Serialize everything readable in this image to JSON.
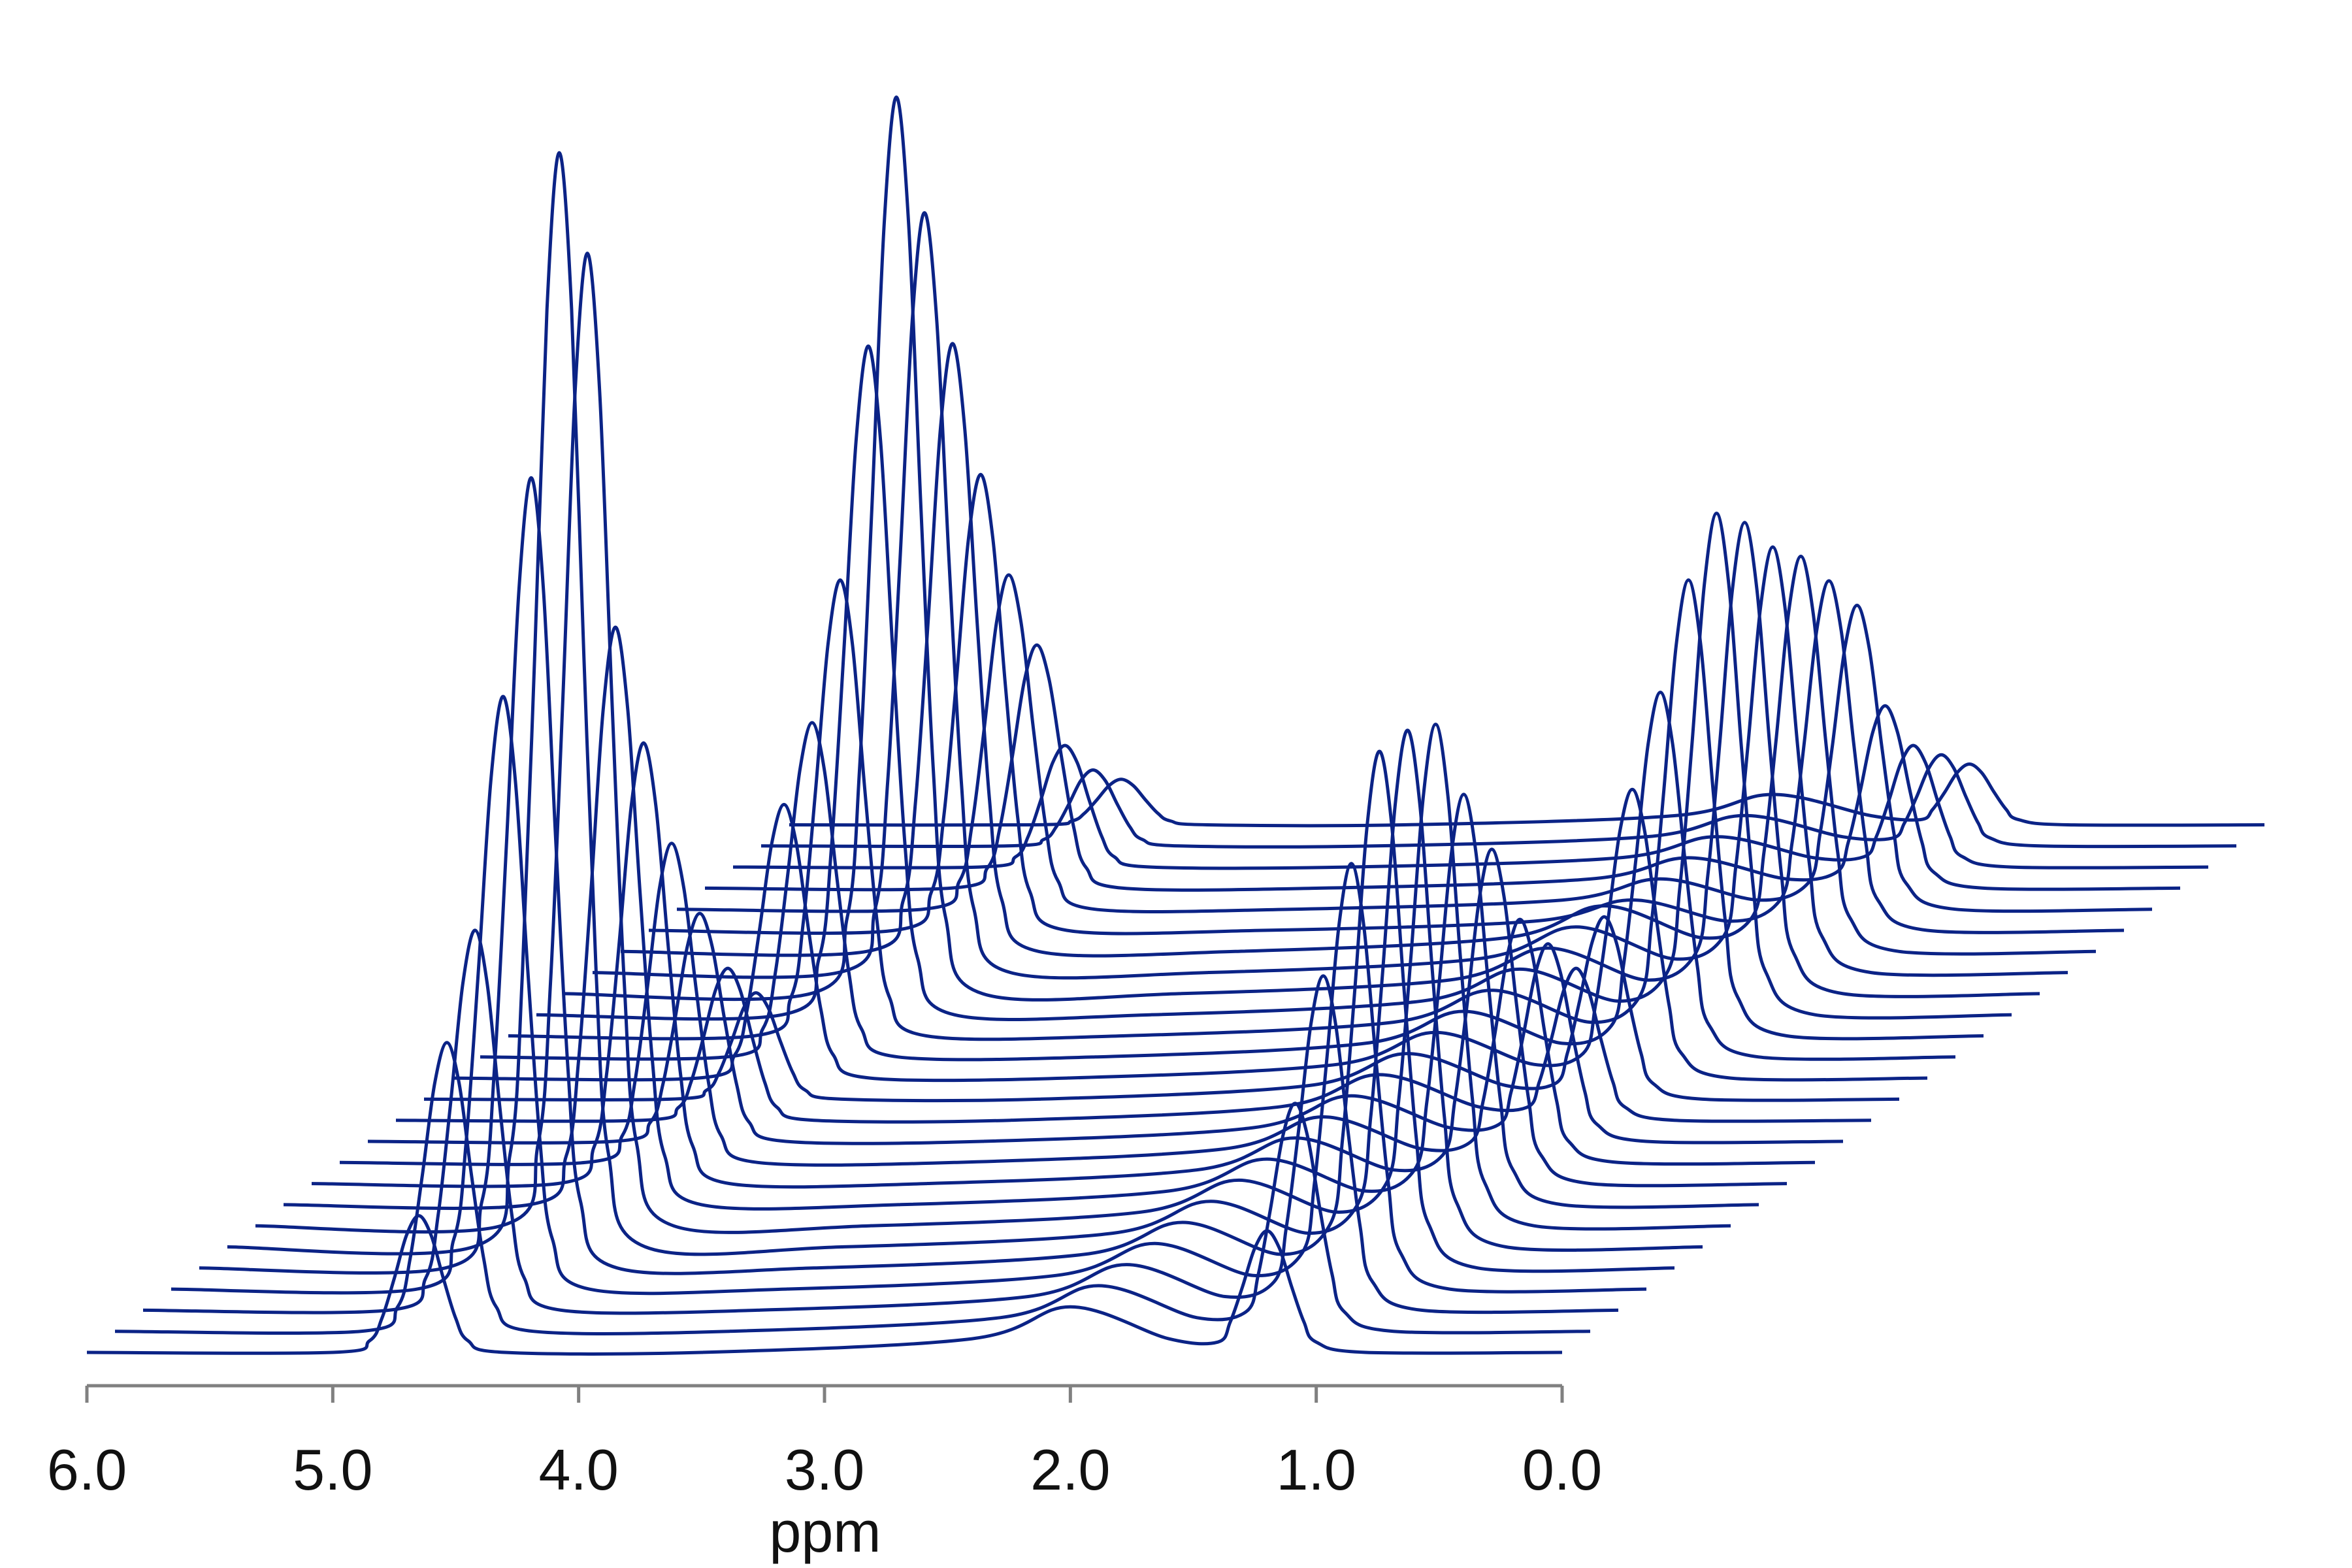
{
  "chart_data": {
    "type": "waterfall",
    "xlabel": "ppm",
    "color": "#0b2386",
    "xlim": [
      6,
      0
    ],
    "xticks": [
      {
        "value": 6,
        "label": "6.0"
      },
      {
        "value": 5,
        "label": "5.0"
      },
      {
        "value": 4,
        "label": "4.0"
      },
      {
        "value": 3,
        "label": "3.0"
      },
      {
        "value": 2,
        "label": "2.0"
      },
      {
        "value": 1,
        "label": "1.0"
      },
      {
        "value": 0,
        "label": "0.0"
      }
    ],
    "x": [
      6.0,
      5.0,
      4.85,
      4.8,
      4.75,
      4.7,
      4.65,
      4.6,
      4.55,
      4.5,
      4.45,
      4.3,
      3.5,
      2.4,
      2.0,
      1.6,
      1.4,
      1.35,
      1.3,
      1.25,
      1.2,
      1.15,
      1.1,
      1.05,
      1.0,
      0.8,
      0.0
    ],
    "series": [
      {
        "values": [
          0,
          0,
          0.77,
          2.25,
          4.86,
          7.71,
          9,
          7.71,
          4.86,
          2.25,
          0.77,
          0,
          0,
          0.9,
          3,
          0.9,
          0.68,
          2,
          4.32,
          6.86,
          8,
          6.86,
          4.32,
          2,
          0.68,
          0,
          0
        ]
      },
      {
        "values": [
          0,
          0,
          1.62,
          4.75,
          10.26,
          16.28,
          19,
          16.28,
          10.26,
          4.75,
          1.62,
          0,
          0,
          0.9,
          3,
          0.9,
          1.28,
          3.75,
          8.1,
          12.86,
          15,
          12.86,
          8.1,
          3.75,
          1.28,
          0,
          0
        ]
      },
      {
        "values": [
          0,
          0,
          2.13,
          6.25,
          13.5,
          21.43,
          25,
          21.43,
          13.5,
          6.25,
          2.13,
          0,
          0,
          0.9,
          3,
          0.9,
          1.87,
          5.5,
          11.88,
          18.85,
          22,
          18.85,
          11.88,
          5.5,
          1.87,
          0,
          0
        ]
      },
      {
        "values": [
          0,
          0,
          3.32,
          9.75,
          21.06,
          33.42,
          39,
          33.42,
          21.06,
          9.75,
          3.32,
          0,
          0,
          0.9,
          3,
          0.9,
          2.38,
          7,
          15.12,
          24,
          28,
          24,
          15.12,
          7,
          2.38,
          0,
          0
        ]
      },
      {
        "values": [
          0,
          0,
          4.42,
          13,
          28.08,
          44.56,
          52,
          44.56,
          28.08,
          13,
          4.42,
          0,
          0,
          0.9,
          3,
          0.9,
          2.89,
          8.5,
          18.36,
          29.14,
          34,
          29.14,
          18.36,
          8.5,
          2.89,
          0,
          0
        ]
      },
      {
        "values": [
          0,
          0,
          6.12,
          18,
          38.88,
          61.7,
          72,
          61.7,
          38.88,
          18,
          6.12,
          0,
          0,
          0.9,
          3,
          0.9,
          2.89,
          8.5,
          18.36,
          29.14,
          34,
          29.14,
          18.36,
          8.5,
          2.89,
          0,
          0
        ]
      },
      {
        "values": [
          0,
          0,
          5.44,
          16,
          34.56,
          54.85,
          64,
          54.85,
          34.56,
          16,
          5.44,
          0,
          0,
          0.9,
          3,
          0.9,
          2.81,
          8.25,
          17.82,
          28.28,
          33,
          28.28,
          17.82,
          8.25,
          2.81,
          0,
          0
        ]
      },
      {
        "values": [
          0,
          0,
          3.23,
          9.5,
          20.52,
          32.57,
          38,
          32.57,
          20.52,
          9.5,
          3.23,
          0,
          0,
          0.9,
          3,
          0.9,
          2.3,
          6.75,
          14.58,
          23.14,
          27,
          23.14,
          14.58,
          6.75,
          2.3,
          0,
          0
        ]
      },
      {
        "values": [
          0,
          0,
          2.47,
          7.25,
          15.66,
          24.85,
          29,
          24.85,
          15.66,
          7.25,
          2.47,
          0,
          0,
          0.9,
          3,
          0.9,
          1.87,
          5.5,
          11.88,
          18.85,
          22,
          18.85,
          11.88,
          5.5,
          1.87,
          0,
          0
        ]
      },
      {
        "values": [
          0,
          0,
          1.79,
          5.25,
          11.34,
          18,
          21,
          18,
          11.34,
          5.25,
          1.79,
          0,
          0,
          0.9,
          3,
          0.9,
          1.36,
          4,
          8.64,
          13.71,
          16,
          13.71,
          8.64,
          4,
          1.36,
          0,
          0
        ]
      },
      {
        "values": [
          0,
          0,
          1.28,
          3.75,
          8.1,
          12.86,
          15,
          12.86,
          8.1,
          3.75,
          1.28,
          0,
          0,
          0.9,
          3,
          0.9,
          1.11,
          3.25,
          7.02,
          11.14,
          13,
          11.14,
          7.02,
          3.25,
          1.11,
          0,
          0
        ]
      },
      {
        "values": [
          0,
          0,
          0.85,
          2.5,
          5.4,
          8.57,
          10,
          8.57,
          5.4,
          2.5,
          0.85,
          0,
          0,
          0.9,
          3,
          0.9,
          0.85,
          2.5,
          5.4,
          8.57,
          10,
          8.57,
          5.4,
          2.5,
          0.85,
          0,
          0
        ]
      },
      {
        "values": [
          0,
          0,
          0.6,
          1.75,
          3.78,
          6,
          7,
          6,
          3.78,
          1.75,
          0.6,
          0,
          0,
          0.9,
          3,
          0.9,
          1.02,
          3,
          6.48,
          10.28,
          12,
          10.28,
          6.48,
          3,
          1.02,
          0,
          0
        ]
      },
      {
        "values": [
          0,
          0,
          1.53,
          4.5,
          9.72,
          15.43,
          18,
          15.43,
          9.72,
          4.5,
          1.53,
          0,
          0,
          0.9,
          3,
          0.9,
          1.62,
          4.75,
          10.26,
          16.28,
          19,
          16.28,
          10.26,
          4.75,
          1.62,
          0,
          0
        ]
      },
      {
        "values": [
          0,
          0,
          1.87,
          5.5,
          11.88,
          18.85,
          22,
          18.85,
          11.88,
          5.5,
          1.87,
          0,
          0,
          0.9,
          3,
          0.9,
          2.04,
          6,
          12.96,
          20.57,
          24,
          20.57,
          12.96,
          6,
          2.04,
          0,
          0
        ]
      },
      {
        "values": [
          0,
          0,
          2.55,
          7.5,
          16.2,
          25.71,
          30,
          25.71,
          16.2,
          7.5,
          2.55,
          0,
          0,
          0.9,
          3,
          0.9,
          2.55,
          7.5,
          16.2,
          25.71,
          30,
          25.71,
          16.2,
          7.5,
          2.55,
          0,
          0
        ]
      },
      {
        "values": [
          0,
          0,
          3.74,
          11,
          23.76,
          37.71,
          44,
          37.71,
          23.76,
          11,
          3.74,
          0,
          0,
          0.9,
          3,
          0.9,
          2.81,
          8.25,
          17.82,
          28.28,
          33,
          28.28,
          17.82,
          8.25,
          2.81,
          0,
          0
        ]
      },
      {
        "values": [
          0,
          0,
          5.02,
          14.75,
          31.86,
          50.56,
          59,
          50.56,
          31.86,
          14.75,
          5.02,
          0,
          0,
          0.9,
          3,
          0.9,
          2.64,
          7.75,
          16.74,
          26.57,
          31,
          26.57,
          16.74,
          7.75,
          2.64,
          0,
          0
        ]
      },
      {
        "values": [
          0,
          0,
          4.25,
          12.5,
          27,
          42.85,
          50,
          42.85,
          27,
          12.5,
          4.25,
          0,
          0,
          0.9,
          3,
          0.9,
          2.38,
          7,
          15.12,
          24,
          28,
          24,
          15.12,
          7,
          2.38,
          0,
          0
        ]
      },
      {
        "values": [
          0,
          0,
          3.4,
          10,
          21.6,
          34.28,
          40,
          34.28,
          21.6,
          10,
          3.4,
          0,
          0,
          0.9,
          3,
          0.9,
          2.21,
          6.5,
          14.04,
          22.28,
          26,
          22.28,
          14.04,
          6.5,
          2.21,
          0,
          0
        ]
      },
      {
        "values": [
          0,
          0,
          2.55,
          7.5,
          16.2,
          25.71,
          30,
          25.71,
          16.2,
          7.5,
          2.55,
          0,
          0,
          0.6,
          2,
          0.6,
          1.96,
          5.75,
          12.42,
          19.71,
          23,
          19.71,
          12.42,
          5.75,
          1.96,
          0,
          0
        ]
      },
      {
        "values": [
          0,
          0,
          1.87,
          5.5,
          11.88,
          18.85,
          22,
          18.85,
          11.88,
          5.5,
          1.87,
          0,
          0,
          0.6,
          2,
          0.6,
          1.7,
          5,
          10.8,
          17.14,
          20,
          17.14,
          10.8,
          5,
          1.7,
          0,
          0
        ]
      },
      {
        "values": [
          0,
          0,
          1.36,
          4,
          8.64,
          13.71,
          16,
          13.71,
          8.64,
          4,
          1.36,
          0,
          0,
          0.6,
          2,
          0.6,
          1.02,
          3,
          6.48,
          10.28,
          12,
          10.28,
          6.48,
          3,
          1.02,
          0,
          0
        ]
      },
      {
        "values": [
          0,
          0,
          0.68,
          2,
          4.32,
          6.86,
          8,
          6.86,
          4.32,
          2,
          0.68,
          0,
          0,
          0.6,
          2,
          0.6,
          0.68,
          2,
          4.32,
          6.86,
          8,
          6.86,
          4.32,
          2,
          0.68,
          0,
          0
        ]
      },
      {
        "values": [
          0,
          0,
          0.43,
          1.25,
          2.7,
          4.29,
          5,
          4.29,
          2.7,
          1.25,
          0.43,
          0,
          0,
          0.6,
          2,
          0.6,
          0.51,
          1.5,
          3.24,
          5.14,
          6,
          5.14,
          3.24,
          1.5,
          0.51,
          0,
          0
        ]
      },
      {
        "values": [
          0,
          0,
          0.26,
          0.75,
          1.62,
          2.57,
          3,
          2.57,
          1.62,
          0.75,
          0.26,
          0,
          0,
          0.6,
          2,
          0.6,
          0.34,
          1,
          2.16,
          3.43,
          4,
          3.43,
          2.16,
          1,
          0.34,
          0,
          0
        ]
      }
    ]
  }
}
